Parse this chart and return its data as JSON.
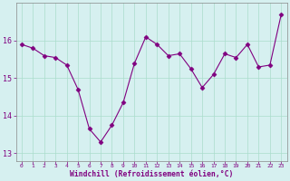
{
  "x": [
    0,
    1,
    2,
    3,
    4,
    5,
    6,
    7,
    8,
    9,
    10,
    11,
    12,
    13,
    14,
    15,
    16,
    17,
    18,
    19,
    20,
    21,
    22,
    23
  ],
  "y": [
    15.9,
    15.8,
    15.6,
    15.55,
    15.35,
    14.7,
    13.65,
    13.3,
    13.75,
    14.35,
    15.4,
    16.1,
    15.9,
    15.6,
    15.65,
    15.25,
    14.75,
    15.1,
    15.65,
    15.55,
    15.9,
    15.3,
    15.35,
    16.7
  ],
  "line_color": "#800080",
  "marker": "D",
  "marker_size": 2.5,
  "bg_color": "#d6f0f0",
  "grid_color": "#aaddcc",
  "xlabel": "Windchill (Refroidissement éolien,°C)",
  "xlabel_color": "#800080",
  "tick_color": "#800080",
  "spine_color": "#888888",
  "ylim": [
    12.8,
    17.0
  ],
  "xlim": [
    -0.5,
    23.5
  ],
  "yticks": [
    13,
    14,
    15,
    16
  ],
  "xticks": [
    0,
    1,
    2,
    3,
    4,
    5,
    6,
    7,
    8,
    9,
    10,
    11,
    12,
    13,
    14,
    15,
    16,
    17,
    18,
    19,
    20,
    21,
    22,
    23
  ],
  "figsize": [
    3.2,
    2.0
  ],
  "dpi": 100
}
